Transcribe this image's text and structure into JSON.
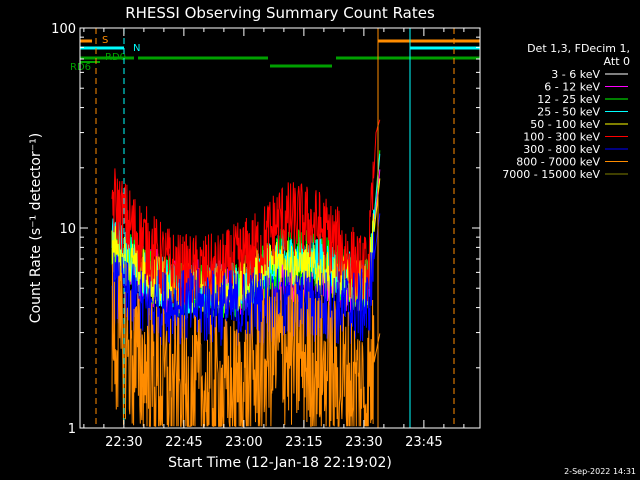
{
  "chart_data": {
    "type": "line",
    "title": "RHESSI Observing Summary Count Rates",
    "xlabel": "Start Time (12-Jan-18 22:19:02)",
    "ylabel": "Count Rate (s⁻¹ detector⁻¹)",
    "yscale": "log",
    "ylim": [
      1,
      100
    ],
    "xlim_minutes_from_start": [
      0,
      100
    ],
    "x_tick_labels": [
      {
        "label": "22:30",
        "t": 10.97
      },
      {
        "label": "22:45",
        "t": 25.97
      },
      {
        "label": "23:00",
        "t": 40.97
      },
      {
        "label": "23:15",
        "t": 55.97
      },
      {
        "label": "23:30",
        "t": 70.97
      },
      {
        "label": "23:45",
        "t": 85.97
      }
    ],
    "y_tick_labels": [
      {
        "label": "1",
        "v": 1
      },
      {
        "label": "10",
        "v": 10
      },
      {
        "label": "100",
        "v": 100
      }
    ],
    "legend_header": [
      "Det 1,3, FDecim 1,",
      "Att 0"
    ],
    "legend_placement": "right",
    "series": [
      {
        "name": "3 - 6 keV",
        "color": "#ffffff",
        "values": []
      },
      {
        "name": "6 - 12 keV",
        "color": "#ff00ff",
        "values": [
          [
            8,
            7
          ],
          [
            15,
            6
          ],
          [
            25,
            5
          ],
          [
            40,
            5
          ],
          [
            50,
            6
          ],
          [
            60,
            6
          ],
          [
            72,
            5
          ],
          [
            75,
            20
          ]
        ]
      },
      {
        "name": "12 - 25 keV",
        "color": "#00ff00",
        "values": [
          [
            8,
            8
          ],
          [
            15,
            6
          ],
          [
            25,
            5
          ],
          [
            40,
            5
          ],
          [
            50,
            7
          ],
          [
            60,
            7
          ],
          [
            72,
            5
          ],
          [
            75,
            25
          ]
        ]
      },
      {
        "name": "25 - 50 keV",
        "color": "#00ffff",
        "values": [
          [
            8,
            9
          ],
          [
            15,
            6
          ],
          [
            25,
            5
          ],
          [
            40,
            5
          ],
          [
            50,
            7
          ],
          [
            60,
            7
          ],
          [
            72,
            5
          ],
          [
            75,
            24
          ]
        ]
      },
      {
        "name": "50 - 100 keV",
        "color": "#ffff00",
        "values": [
          [
            8,
            8
          ],
          [
            15,
            6
          ],
          [
            25,
            5
          ],
          [
            40,
            5
          ],
          [
            50,
            7
          ],
          [
            60,
            6
          ],
          [
            72,
            5
          ],
          [
            75,
            18
          ]
        ]
      },
      {
        "name": "100 - 300 keV",
        "color": "#ff0000",
        "values": [
          [
            8,
            14
          ],
          [
            10,
            12
          ],
          [
            15,
            9
          ],
          [
            20,
            7
          ],
          [
            25,
            6
          ],
          [
            30,
            6
          ],
          [
            35,
            6
          ],
          [
            40,
            7
          ],
          [
            45,
            8
          ],
          [
            50,
            11
          ],
          [
            55,
            11
          ],
          [
            60,
            10
          ],
          [
            65,
            8
          ],
          [
            70,
            6
          ],
          [
            72,
            6
          ],
          [
            73,
            12
          ],
          [
            74,
            30
          ],
          [
            75,
            35
          ]
        ]
      },
      {
        "name": "300 - 800 keV",
        "color": "#0000ff",
        "values": [
          [
            8,
            5
          ],
          [
            15,
            4
          ],
          [
            25,
            4
          ],
          [
            40,
            4
          ],
          [
            50,
            4
          ],
          [
            60,
            4
          ],
          [
            72,
            4
          ],
          [
            75,
            12
          ]
        ]
      },
      {
        "name": "800 - 7000 keV",
        "color": "#ff8c00",
        "values": [
          [
            8,
            3
          ],
          [
            15,
            2
          ],
          [
            25,
            1.5
          ],
          [
            40,
            1.5
          ],
          [
            50,
            2.5
          ],
          [
            60,
            2
          ],
          [
            72,
            1.5
          ],
          [
            75,
            3
          ]
        ]
      },
      {
        "name": "7000 - 15000 keV",
        "color": "#808000",
        "values": []
      }
    ],
    "annotations": [
      {
        "text": "S",
        "color": "#ff8c00"
      },
      {
        "text": "N",
        "color": "#00ffff"
      },
      {
        "text": "RD0",
        "color": "#00a000"
      },
      {
        "text": "RD6",
        "color": "#00a000"
      }
    ],
    "flag_bars": [
      {
        "flag": "S",
        "color": "#ff8c00",
        "segments": [
          [
            0,
            3
          ],
          [
            74.5,
            100
          ]
        ]
      },
      {
        "flag": "N",
        "color": "#00ffff",
        "segments": [
          [
            0,
            11
          ],
          [
            82.5,
            100
          ]
        ]
      },
      {
        "flag": "RD0",
        "color": "#00a000",
        "segments": [
          [
            0,
            13.5
          ],
          [
            14.5,
            47
          ],
          [
            47.5,
            63
          ],
          [
            64,
            100
          ]
        ]
      }
    ],
    "vertical_markers": [
      {
        "t": 0,
        "color": "#00ffff",
        "style": "solid"
      },
      {
        "t": 4,
        "color": "#ff8c00",
        "style": "dashed"
      },
      {
        "t": 11,
        "color": "#00ffff",
        "style": "dashed"
      },
      {
        "t": 74.5,
        "color": "#ff8c00",
        "style": "solid"
      },
      {
        "t": 82.5,
        "color": "#00ffff",
        "style": "solid"
      },
      {
        "t": 93.5,
        "color": "#ff8c00",
        "style": "dashed"
      }
    ],
    "footer": "2-Sep-2022 14:31"
  }
}
